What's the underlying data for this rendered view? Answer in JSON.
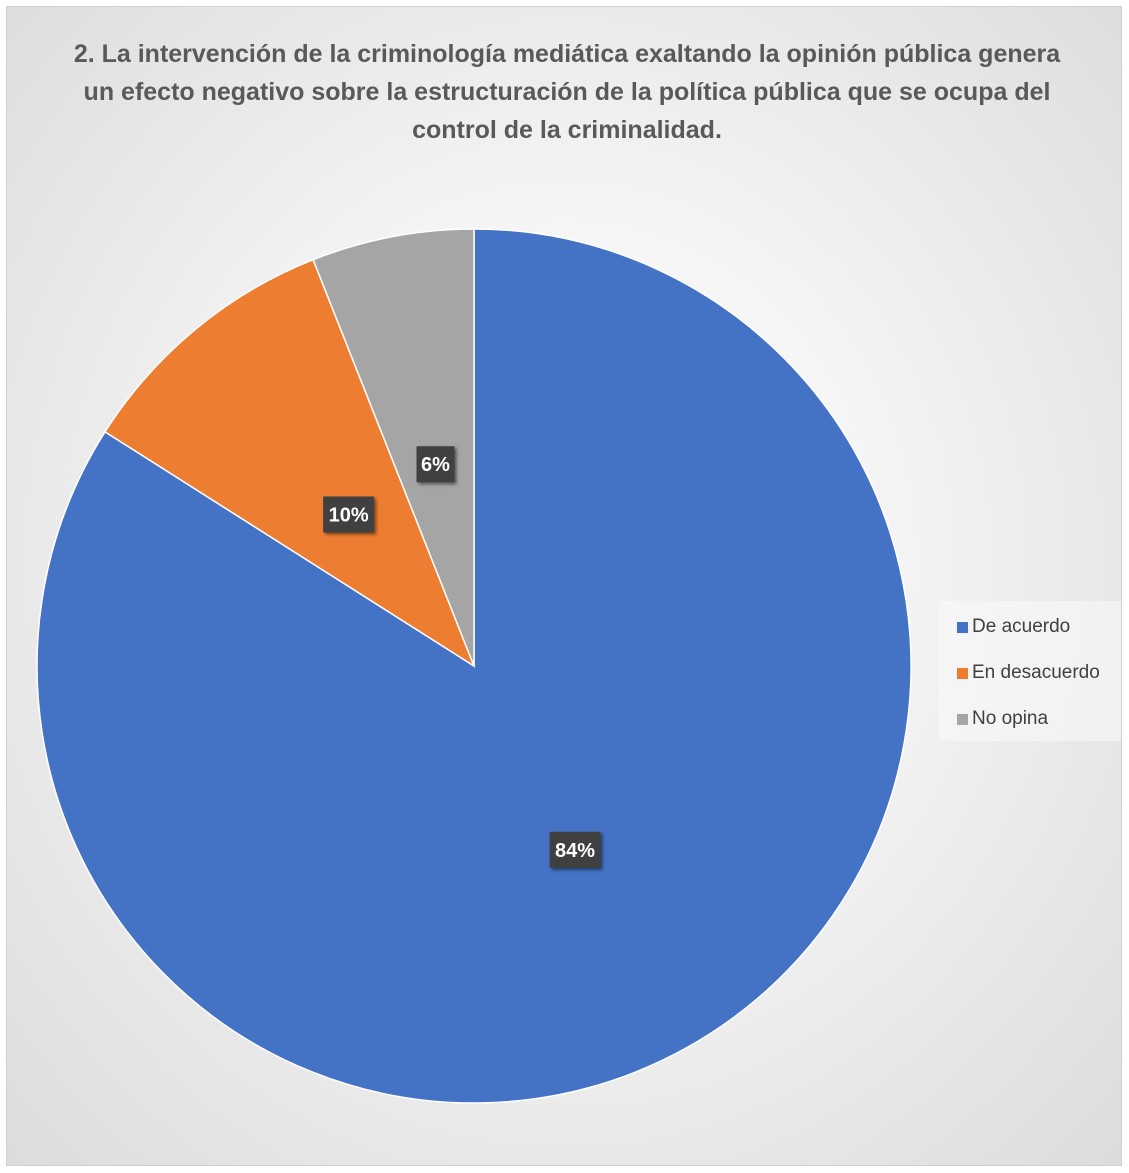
{
  "chart_data": {
    "type": "pie",
    "title": "2. La intervención de la criminología mediática exaltando la opinión pública genera un efecto negativo sobre la estructuración de la política pública que se ocupa del control de la criminalidad.",
    "categories": [
      "De acuerdo",
      "En desacuerdo",
      "No opina"
    ],
    "values": [
      84,
      10,
      6
    ],
    "data_labels": [
      "84%",
      "10%",
      "6%"
    ],
    "colors": [
      "#4472C4",
      "#ED7D31",
      "#A5A5A5"
    ],
    "legend_position": "right",
    "start": "top",
    "direction": "clockwise"
  }
}
